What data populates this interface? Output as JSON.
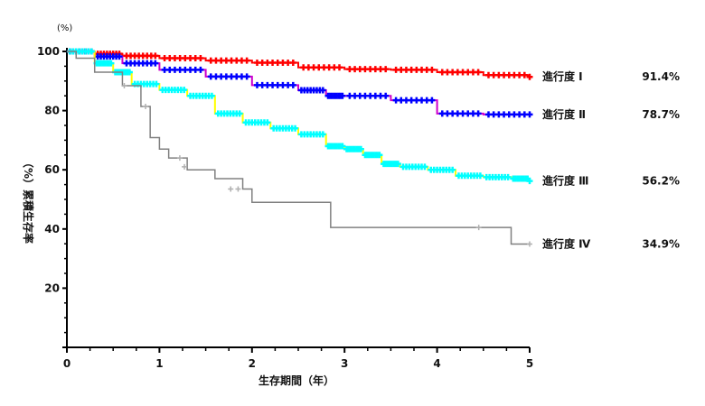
{
  "chart_data": {
    "type": "line",
    "title": "",
    "xlabel": "生存期間（年）",
    "ylabel": "（%）累積生存率",
    "y_unit_label": "(%)",
    "xlim": [
      0,
      5
    ],
    "ylim": [
      0,
      100
    ],
    "x_ticks": [
      "0",
      "1",
      "2",
      "3",
      "4",
      "5"
    ],
    "y_ticks": [
      "20",
      "40",
      "60",
      "80",
      "100"
    ],
    "grid": false,
    "legend": "right",
    "series": [
      {
        "name": "進行度 Ⅰ",
        "color": "#ff0000",
        "final_label": "91.4%",
        "x": [
          0,
          0.3,
          0.6,
          1.0,
          1.5,
          2.0,
          2.5,
          3.0,
          3.5,
          4.0,
          4.5,
          5.0
        ],
        "y": [
          100,
          99.2,
          98.5,
          97.7,
          96.9,
          96.2,
          94.6,
          94.0,
          93.8,
          93.0,
          92.0,
          91.4
        ]
      },
      {
        "name": "進行度 Ⅱ",
        "color": "#0000ff",
        "line_color": "#cc00cc",
        "final_label": "78.7%",
        "x": [
          0,
          0.3,
          0.6,
          1.0,
          1.5,
          2.0,
          2.5,
          2.8,
          3.0,
          3.5,
          4.0,
          4.5,
          5.0
        ],
        "y": [
          100,
          98.3,
          96.0,
          93.8,
          91.5,
          88.6,
          86.9,
          85.0,
          85.0,
          83.5,
          79.0,
          78.7,
          78.7
        ]
      },
      {
        "name": "進行度 Ⅲ",
        "color": "#00ffff",
        "line_color": "#ffff00",
        "final_label": "56.2%",
        "x": [
          0,
          0.3,
          0.5,
          0.7,
          1.0,
          1.3,
          1.6,
          1.9,
          2.2,
          2.5,
          2.8,
          3.0,
          3.2,
          3.4,
          3.6,
          3.9,
          4.2,
          4.5,
          4.8,
          5.0
        ],
        "y": [
          100,
          96.0,
          93.0,
          89.0,
          87.0,
          85.0,
          79.0,
          76.0,
          74.0,
          72.0,
          68.0,
          67.0,
          65.0,
          62.0,
          61.0,
          60.0,
          58.0,
          57.5,
          57.0,
          56.2
        ]
      },
      {
        "name": "進行度 Ⅳ",
        "color": "#808080",
        "marker_color": "#b0b0b0",
        "final_label": "34.9%",
        "x": [
          0,
          0.1,
          0.3,
          0.6,
          0.8,
          0.9,
          1.0,
          1.1,
          1.3,
          1.6,
          1.9,
          2.0,
          2.5,
          2.75,
          2.85,
          3.0,
          4.0,
          4.5,
          4.8,
          5.0
        ],
        "y": [
          100,
          97.7,
          93.0,
          88.4,
          81.4,
          70.9,
          67.0,
          64.0,
          60.0,
          57.0,
          53.5,
          49.0,
          49.0,
          49.0,
          40.5,
          40.5,
          40.5,
          40.5,
          34.9,
          34.9
        ]
      }
    ]
  }
}
